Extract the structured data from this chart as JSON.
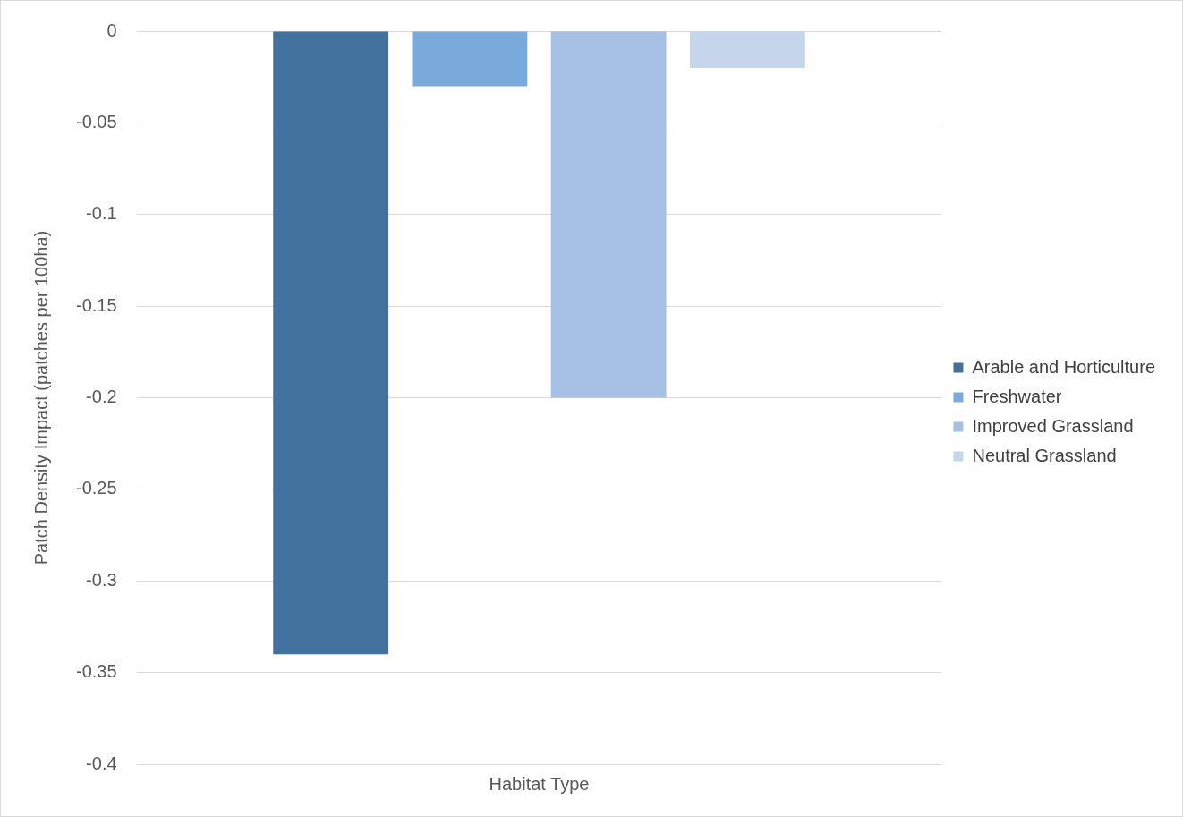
{
  "chart_data": {
    "type": "bar",
    "ylabel": "Patch Density Impact (patches per 100ha)",
    "categories": [
      "Habitat Type"
    ],
    "series": [
      {
        "name": "Arable and Horticulture",
        "color": "#41719c",
        "values": [
          -0.34
        ]
      },
      {
        "name": "Freshwater",
        "color": "#7aaadb",
        "values": [
          -0.03
        ]
      },
      {
        "name": "Improved Grassland",
        "color": "#a5c0e3",
        "values": [
          -0.2
        ]
      },
      {
        "name": "Neutral Grassland",
        "color": "#c5d5ea",
        "values": [
          -0.02
        ]
      }
    ],
    "ylim": [
      -0.4,
      0
    ],
    "yticks": [
      0,
      -0.05,
      -0.1,
      -0.15,
      -0.2,
      -0.25,
      -0.3,
      -0.35,
      -0.4
    ],
    "grid": "y",
    "legend": "right"
  }
}
